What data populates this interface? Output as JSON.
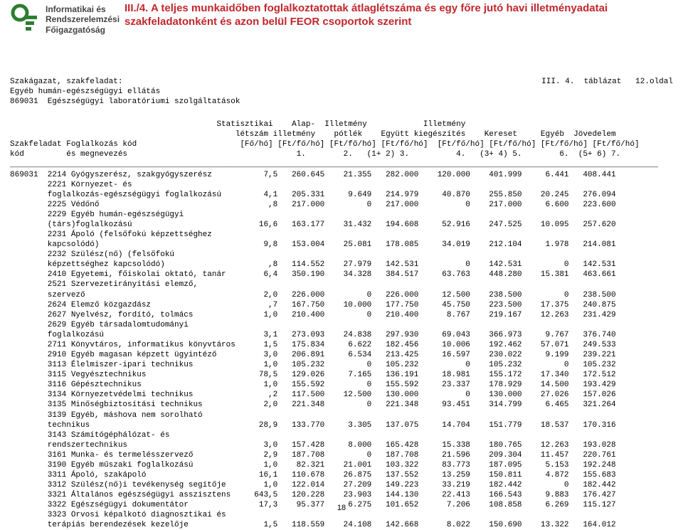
{
  "logo": {
    "line1": "Informatikai és",
    "line2": "Rendszerelemzési",
    "line3": "Főigazgatóság",
    "icon_color": "#2e7d32"
  },
  "title": {
    "text": "III./4. A teljes munkaidőben foglalkoztatottak átlaglétszáma és egy főre jutó havi illetményadatai szakfeladatonként és azon belül FEOR csoportok szerint",
    "color": "#c1272d"
  },
  "meta": {
    "left": "Szakágazat, szakfeladat:\nEgyéb humán-egészségügyi ellátás\n869031  Egészségügyi laboratóriumi szolgáltatások",
    "right": "III. 4.  táblázat   12.oldal"
  },
  "header": {
    "h1": "                                            Statisztikai    Alap-  Illetmény            Illetmény",
    "h2": "                                                létszám illetmény    pótlék    Együtt kiegészítés    Kereset     Egyéb  Jövedelem",
    "h3": "Szakfeladat Foglalkozás kód                      [Fő/hó] [Ft/fő/hó] [Ft/fő/hó] [Ft/fő/hó]  [Ft/fő/hó] [Ft/fő/hó] [Ft/fő/hó] [Ft/fő/hó]",
    "h4": "kód         és megnevezés                                    1.        2.   (1+ 2) 3.          4.   (3+ 4) 5.        6.  (5+ 6) 7."
  },
  "ruler": "__________________________________________________________________________________________________________________________________________",
  "row_left_code": "869031",
  "columns": [
    "c1",
    "c2",
    "c3",
    "c4",
    "c5",
    "c6",
    "c7",
    "c8"
  ],
  "rows": [
    {
      "label": "2214 Gyógyszerész, szakgyógyszerész",
      "v": [
        "7,5",
        "260.645",
        "21.355",
        "282.000",
        "120.000",
        "401.999",
        "6.441",
        "408.441"
      ]
    },
    {
      "label": "2221 Környezet- és",
      "v": null
    },
    {
      "label": "foglalkozás-egészségügyi foglalkozású",
      "v": [
        "4,1",
        "205.331",
        "9.649",
        "214.979",
        "40.870",
        "255.850",
        "20.245",
        "276.094"
      ]
    },
    {
      "label": "2225 Védőnő",
      "v": [
        ",8",
        "217.000",
        "0",
        "217.000",
        "0",
        "217.000",
        "6.600",
        "223.600"
      ]
    },
    {
      "label": "2229 Egyéb humán-egészségügyi",
      "v": null
    },
    {
      "label": "(társ)foglalkozású",
      "v": [
        "16,6",
        "163.177",
        "31.432",
        "194.608",
        "52.916",
        "247.525",
        "10.095",
        "257.620"
      ]
    },
    {
      "label": "2231 Ápoló (felsőfokú képzettséghez",
      "v": null
    },
    {
      "label": "kapcsolódó)",
      "v": [
        "9,8",
        "153.004",
        "25.081",
        "178.085",
        "34.019",
        "212.104",
        "1.978",
        "214.081"
      ]
    },
    {
      "label": "2232 Szülész(nő) (felsőfokú",
      "v": null
    },
    {
      "label": "képzettséghez kapcsolódó)",
      "v": [
        ",8",
        "114.552",
        "27.979",
        "142.531",
        "0",
        "142.531",
        "0",
        "142.531"
      ]
    },
    {
      "label": "2410 Egyetemi, főiskolai oktató, tanár",
      "v": [
        "6,4",
        "350.190",
        "34.328",
        "384.517",
        "63.763",
        "448.280",
        "15.381",
        "463.661"
      ]
    },
    {
      "label": "2521 Szervezetirányítási elemző,",
      "v": null
    },
    {
      "label": "szervező",
      "v": [
        "2,0",
        "226.000",
        "0",
        "226.000",
        "12.500",
        "238.500",
        "0",
        "238.500"
      ]
    },
    {
      "label": "2624 Elemző közgazdász",
      "v": [
        ",7",
        "167.750",
        "10.000",
        "177.750",
        "45.750",
        "223.500",
        "17.375",
        "240.875"
      ]
    },
    {
      "label": "2627 Nyelvész, fordító, tolmács",
      "v": [
        "1,0",
        "210.400",
        "0",
        "210.400",
        "8.767",
        "219.167",
        "12.263",
        "231.429"
      ]
    },
    {
      "label": "2629 Egyéb társadalomtudományi",
      "v": null
    },
    {
      "label": "foglalkozású",
      "v": [
        "3,1",
        "273.093",
        "24.838",
        "297.930",
        "69.043",
        "366.973",
        "9.767",
        "376.740"
      ]
    },
    {
      "label": "2711 Könyvtáros, informatikus könyvtáros",
      "v": [
        "1,5",
        "175.834",
        "6.622",
        "182.456",
        "10.006",
        "192.462",
        "57.071",
        "249.533"
      ]
    },
    {
      "label": "2910 Egyéb magasan képzett ügyintéző",
      "v": [
        "3,0",
        "206.891",
        "6.534",
        "213.425",
        "16.597",
        "230.022",
        "9.199",
        "239.221"
      ]
    },
    {
      "label": "3113 Élelmiszer-ipari technikus",
      "v": [
        "1,0",
        "105.232",
        "0",
        "105.232",
        "0",
        "105.232",
        "0",
        "105.232"
      ]
    },
    {
      "label": "3115 Vegyésztechnikus",
      "v": [
        "78,5",
        "129.026",
        "7.165",
        "136.191",
        "18.981",
        "155.172",
        "17.340",
        "172.512"
      ]
    },
    {
      "label": "3116 Gépésztechnikus",
      "v": [
        "1,0",
        "155.592",
        "0",
        "155.592",
        "23.337",
        "178.929",
        "14.500",
        "193.429"
      ]
    },
    {
      "label": "3134 Környezetvédelmi technikus",
      "v": [
        ",2",
        "117.500",
        "12.500",
        "130.000",
        "0",
        "130.000",
        "27.026",
        "157.026"
      ]
    },
    {
      "label": "3135 Minőségbiztosítási technikus",
      "v": [
        "2,0",
        "221.348",
        "0",
        "221.348",
        "93.451",
        "314.799",
        "6.465",
        "321.264"
      ]
    },
    {
      "label": "3139 Egyéb, máshova nem sorolható",
      "v": null
    },
    {
      "label": "technikus",
      "v": [
        "28,9",
        "133.770",
        "3.305",
        "137.075",
        "14.704",
        "151.779",
        "18.537",
        "170.316"
      ]
    },
    {
      "label": "3143 Számítógéphálózat- és",
      "v": null
    },
    {
      "label": "rendszertechnikus",
      "v": [
        "3,0",
        "157.428",
        "8.000",
        "165.428",
        "15.338",
        "180.765",
        "12.263",
        "193.028"
      ]
    },
    {
      "label": "3161 Munka- és termelésszervező",
      "v": [
        "2,9",
        "187.708",
        "0",
        "187.708",
        "21.596",
        "209.304",
        "11.457",
        "220.761"
      ]
    },
    {
      "label": "3190 Egyéb műszaki foglalkozású",
      "v": [
        "1,0",
        "82.321",
        "21.001",
        "103.322",
        "83.773",
        "187.095",
        "5.153",
        "192.248"
      ]
    },
    {
      "label": "3311 Ápoló, szakápoló",
      "v": [
        "16,1",
        "110.678",
        "26.875",
        "137.552",
        "13.259",
        "150.811",
        "4.872",
        "155.683"
      ]
    },
    {
      "label": "3312 Szülész(nő)i tevékenység segítője",
      "v": [
        "1,0",
        "122.014",
        "27.209",
        "149.223",
        "33.219",
        "182.442",
        "0",
        "182.442"
      ]
    },
    {
      "label": "3321 Általános egészségügyi asszisztens",
      "v": [
        "643,5",
        "120.228",
        "23.903",
        "144.130",
        "22.413",
        "166.543",
        "9.883",
        "176.427"
      ]
    },
    {
      "label": "3322 Egészségügyi dokumentátor",
      "v": [
        "17,3",
        "95.377",
        "6.275",
        "101.652",
        "7.206",
        "108.858",
        "6.269",
        "115.127"
      ]
    },
    {
      "label": "3323 Orvosi képalkotó diagnosztikai és",
      "v": null
    },
    {
      "label": "terápiás berendezések kezelője",
      "v": [
        "1,5",
        "118.559",
        "24.108",
        "142.668",
        "8.022",
        "150.690",
        "13.322",
        "164.012"
      ]
    }
  ],
  "pagenum": "18",
  "widths": {
    "label": 42,
    "c1": 7,
    "c2": 10,
    "c3": 10,
    "c4": 10,
    "c5": 11,
    "c6": 11,
    "c7": 10,
    "c8": 10
  }
}
